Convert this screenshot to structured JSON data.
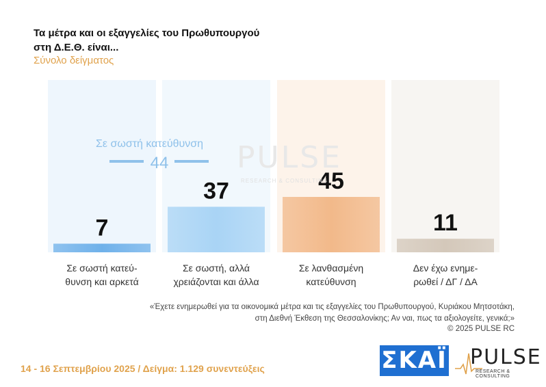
{
  "title_line1": "Τα μέτρα και οι εξαγγελίες του Πρωθυπουργού",
  "title_line2": "στη Δ.Ε.Θ. είναι...",
  "subtitle": "Σύνολο δείγματος",
  "watermark": {
    "word": "PULSE",
    "sub": "RESEARCH & CONSULTING"
  },
  "combined": {
    "label": "Σε σωστή κατεύθυνση",
    "value": 44,
    "color": "#8fc1ea"
  },
  "chart_data": {
    "type": "bar",
    "categories": [
      "Σε σωστή κατεύ-\nθυνση και αρκετά",
      "Σε σωστή, αλλά\nχρειάζονται και άλλα",
      "Σε λανθασμένη\nκατεύθυνση",
      "Δεν έχω ενημε-\nρωθεί / ΔΓ / ΔΑ"
    ],
    "values": [
      7,
      37,
      45,
      11
    ],
    "colors": [
      "#6fb1ea",
      "#a9d4f5",
      "#f2b98a",
      "#d4c8ba"
    ],
    "column_colors": [
      "#eef6fd",
      "#f1f8fd",
      "#fdf3ea",
      "#f7f5f2"
    ],
    "ylim": [
      0,
      100
    ],
    "title": "",
    "xlabel": "",
    "ylabel": ""
  },
  "question_note": "«Έχετε ενημερωθεί για τα οικονομικά μέτρα και τις εξαγγελίες του Πρωθυπουργού, Κυριάκου Μητσοτάκη,\nστη Διεθνή Έκθεση της Θεσσαλονίκης; Αν ναι, πως τα αξιολογείτε, γενικά;»",
  "copyright": "©  2025  PULSE RC",
  "footer": "14 - 16 Σεπτεμβρίου 2025  /  Δείγμα:  1.129 συνεντεύξεις",
  "logos": {
    "skai": "ΣΚΑΪ",
    "pulse_word": "PULSE",
    "pulse_sub": "RESEARCH & CONSULTING"
  }
}
